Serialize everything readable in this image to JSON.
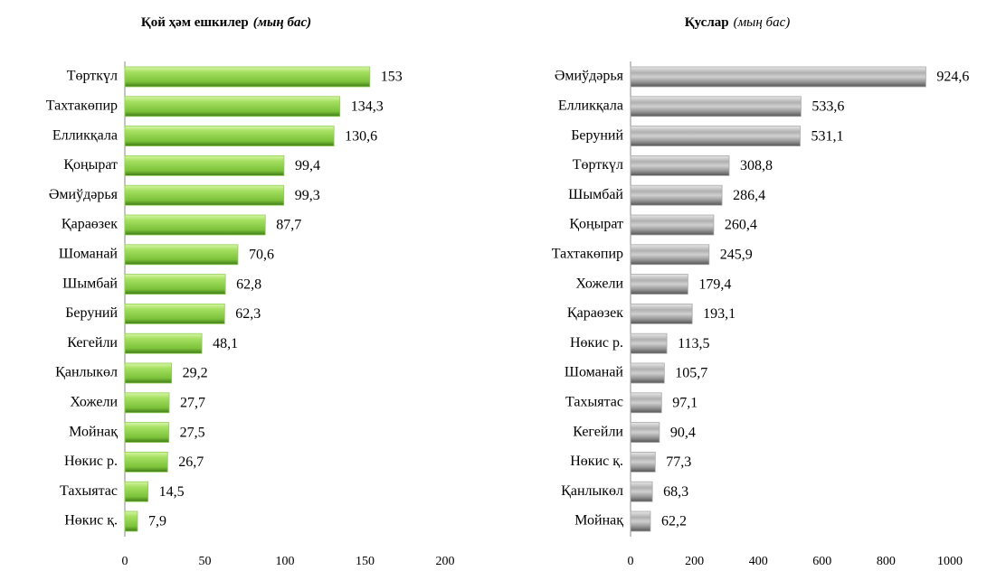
{
  "chart_data": [
    {
      "type": "bar",
      "orientation": "horizontal",
      "title": "Қой ҳәм ешкилер",
      "subtitle": "(мың бас)",
      "subtitle_bold": true,
      "color": "#8fd14f",
      "categories": [
        "Төрткүл",
        "Тахтакөпир",
        "Елликқала",
        "Қоңырат",
        "Әмиўдәрья",
        "Қараөзек",
        "Шоманай",
        "Шымбай",
        "Беруний",
        "Кегейли",
        "Қанлыкөл",
        "Хожели",
        "Мойнақ",
        "Нөкис р.",
        "Тахыятас",
        "Нөкис қ."
      ],
      "values": [
        153,
        134.3,
        130.6,
        99.4,
        99.3,
        87.7,
        70.6,
        62.8,
        62.3,
        48.1,
        29.2,
        27.7,
        27.5,
        26.7,
        14.5,
        7.9
      ],
      "value_labels": [
        "153",
        "134,3",
        "130,6",
        "99,4",
        "99,3",
        "87,7",
        "70,6",
        "62,8",
        "62,3",
        "48,1",
        "29,2",
        "27,7",
        "27,5",
        "26,7",
        "14,5",
        "7,9"
      ],
      "xlim": [
        0,
        200
      ],
      "xticks": [
        0,
        50,
        100,
        150,
        200
      ]
    },
    {
      "type": "bar",
      "orientation": "horizontal",
      "title": "Қуслар",
      "subtitle": "(мың бас)",
      "subtitle_bold": false,
      "color": "#a8a8a8",
      "categories": [
        "Әмиўдәрья",
        "Елликқала",
        "Беруний",
        "Төрткүл",
        "Шымбай",
        "Қоңырат",
        "Тахтакөпир",
        "Хожели",
        "Қараөзек",
        "Нөкис р.",
        "Шоманай",
        "Тахыятас",
        "Кегейли",
        "Нөкис қ.",
        "Қанлыкөл",
        "Мойнақ"
      ],
      "values": [
        924.6,
        533.6,
        531.1,
        308.8,
        286.4,
        260.4,
        245.9,
        179.4,
        193.1,
        113.5,
        105.7,
        97.1,
        90.4,
        77.3,
        68.3,
        62.2
      ],
      "value_labels": [
        "924,6",
        "533,6",
        "531,1",
        "308,8",
        "286,4",
        "260,4",
        "245,9",
        "179,4",
        "193,1",
        "113,5",
        "105,7",
        "97,1",
        "90,4",
        "77,3",
        "68,3",
        "62,2"
      ],
      "xlim": [
        0,
        1000
      ],
      "xticks": [
        0,
        200,
        400,
        600,
        800,
        1000
      ]
    }
  ]
}
